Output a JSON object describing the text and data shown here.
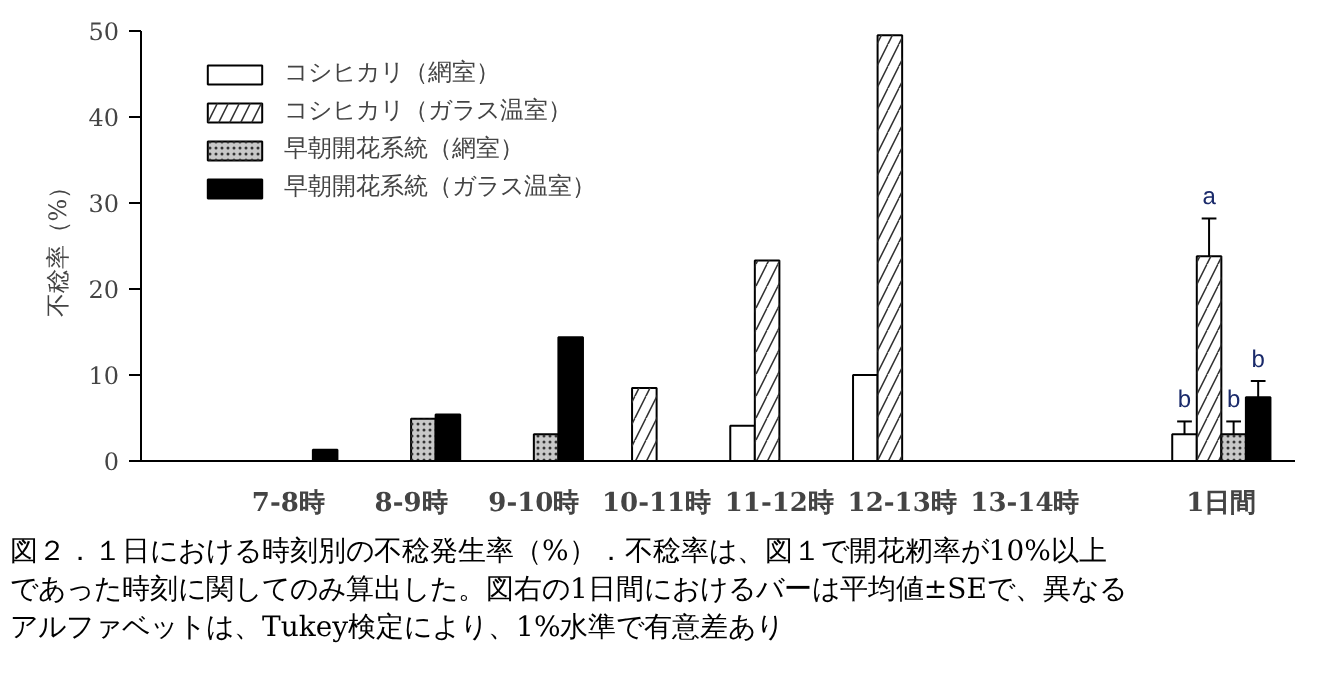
{
  "chart_data": {
    "type": "bar",
    "ylabel": "不稔率（%）",
    "categories": [
      "7-8時",
      "8-9時",
      "9-10時",
      "10-11時",
      "11-12時",
      "12-13時",
      "13-14時",
      "1日間"
    ],
    "series": [
      {
        "name": "コシヒカリ（網室）",
        "color": "#ffffff",
        "values": [
          null,
          null,
          null,
          null,
          4.1,
          10,
          null,
          3.1
        ],
        "errors": [
          null,
          null,
          null,
          null,
          null,
          null,
          null,
          1.5
        ],
        "value_labels": [
          null,
          null,
          null,
          null,
          null,
          null,
          null,
          "b"
        ]
      },
      {
        "name": "コシヒカリ（ガラス温室）",
        "color": "#ffffff",
        "values": [
          null,
          null,
          null,
          8.5,
          23.3,
          49.5,
          null,
          23.8
        ],
        "errors": [
          null,
          null,
          null,
          null,
          null,
          null,
          null,
          4.4
        ],
        "value_labels": [
          null,
          null,
          null,
          null,
          null,
          null,
          null,
          "a"
        ]
      },
      {
        "name": "早朝開花系統（網室）",
        "color": "#c8c8c8",
        "values": [
          null,
          4.9,
          3.1,
          null,
          null,
          null,
          null,
          3.1
        ],
        "errors": [
          null,
          null,
          null,
          null,
          null,
          null,
          null,
          1.5
        ],
        "value_labels": [
          null,
          null,
          null,
          null,
          null,
          null,
          null,
          "b"
        ]
      },
      {
        "name": "早朝開花系統（ガラス温室）",
        "color": "#000000",
        "values": [
          1.3,
          5.4,
          14.4,
          null,
          null,
          null,
          null,
          7.4
        ],
        "errors": [
          null,
          null,
          null,
          null,
          null,
          null,
          null,
          1.9
        ],
        "value_labels": [
          null,
          null,
          null,
          null,
          null,
          null,
          null,
          "b"
        ]
      }
    ],
    "ylim": [
      0,
      50
    ],
    "yticks": [
      0,
      10,
      20,
      30,
      40,
      50
    ],
    "grid": false,
    "legend": "top left",
    "annotations": [
      "図２．１日における時刻別の不稔発生率（%）．不稔率は、図１で開花籾率が10%以上",
      "であった時刻に関してのみ算出した。図右の1日間におけるバーは平均値±SEで、異なる",
      "アルファベットは、Tukey検定により、1%水準で有意差あり"
    ]
  }
}
